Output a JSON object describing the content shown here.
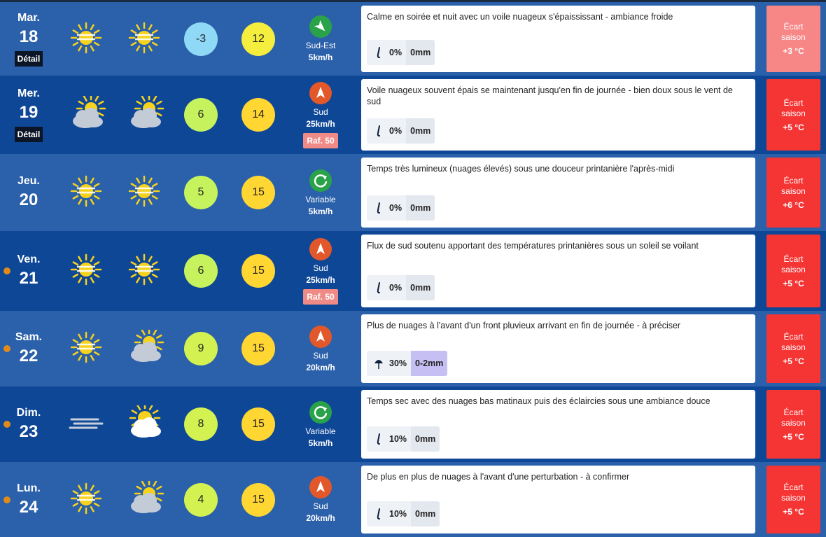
{
  "days": [
    {
      "weekday": "Mar.",
      "date": "18",
      "detail": "Détail",
      "min": "-3",
      "max": "12",
      "wind_dir": "Sud-Est",
      "wind_speed": "5km/h",
      "description": "Calme en soirée et nuit avec un voile nuageux s'épaississant - ambiance froide",
      "rain_prob": "0%",
      "rain_amount": "0mm",
      "anomaly_label": "Écart saison",
      "anomaly": "+3 °C"
    },
    {
      "weekday": "Mer.",
      "date": "19",
      "detail": "Détail",
      "min": "6",
      "max": "14",
      "wind_dir": "Sud",
      "wind_speed": "25km/h",
      "gust": "Raf. 50",
      "description": "Voile nuageux souvent épais se maintenant jusqu'en fin de journée - bien doux sous le vent de sud",
      "rain_prob": "0%",
      "rain_amount": "0mm",
      "anomaly_label": "Écart saison",
      "anomaly": "+5 °C"
    },
    {
      "weekday": "Jeu.",
      "date": "20",
      "min": "5",
      "max": "15",
      "wind_dir": "Variable",
      "wind_speed": "5km/h",
      "description": "Temps très lumineux (nuages élevés) sous une douceur printanière l'après-midi",
      "rain_prob": "0%",
      "rain_amount": "0mm",
      "anomaly_label": "Écart saison",
      "anomaly": "+6 °C"
    },
    {
      "weekday": "Ven.",
      "date": "21",
      "min": "6",
      "max": "15",
      "wind_dir": "Sud",
      "wind_speed": "25km/h",
      "gust": "Raf. 50",
      "description": "Flux de sud soutenu apportant des températures printanières sous un soleil se voilant",
      "rain_prob": "0%",
      "rain_amount": "0mm",
      "anomaly_label": "Écart saison",
      "anomaly": "+5 °C"
    },
    {
      "weekday": "Sam.",
      "date": "22",
      "min": "9",
      "max": "15",
      "wind_dir": "Sud",
      "wind_speed": "20km/h",
      "description": "Plus de nuages à l'avant d'un front pluvieux arrivant en fin de journée - à préciser",
      "rain_prob": "30%",
      "rain_amount": "0-2mm",
      "anomaly_label": "Écart saison",
      "anomaly": "+5 °C"
    },
    {
      "weekday": "Dim.",
      "date": "23",
      "min": "8",
      "max": "15",
      "wind_dir": "Variable",
      "wind_speed": "5km/h",
      "description": "Temps sec avec des nuages bas matinaux puis des éclaircies sous une ambiance douce",
      "rain_prob": "10%",
      "rain_amount": "0mm",
      "anomaly_label": "Écart saison",
      "anomaly": "+5 °C"
    },
    {
      "weekday": "Lun.",
      "date": "24",
      "min": "4",
      "max": "15",
      "wind_dir": "Sud",
      "wind_speed": "20km/h",
      "description": "De plus en plus de nuages à l'avant d'une perturbation - à confirmer",
      "rain_prob": "10%",
      "rain_amount": "0mm",
      "anomaly_label": "Écart saison",
      "anomaly": "+5 °C"
    }
  ]
}
